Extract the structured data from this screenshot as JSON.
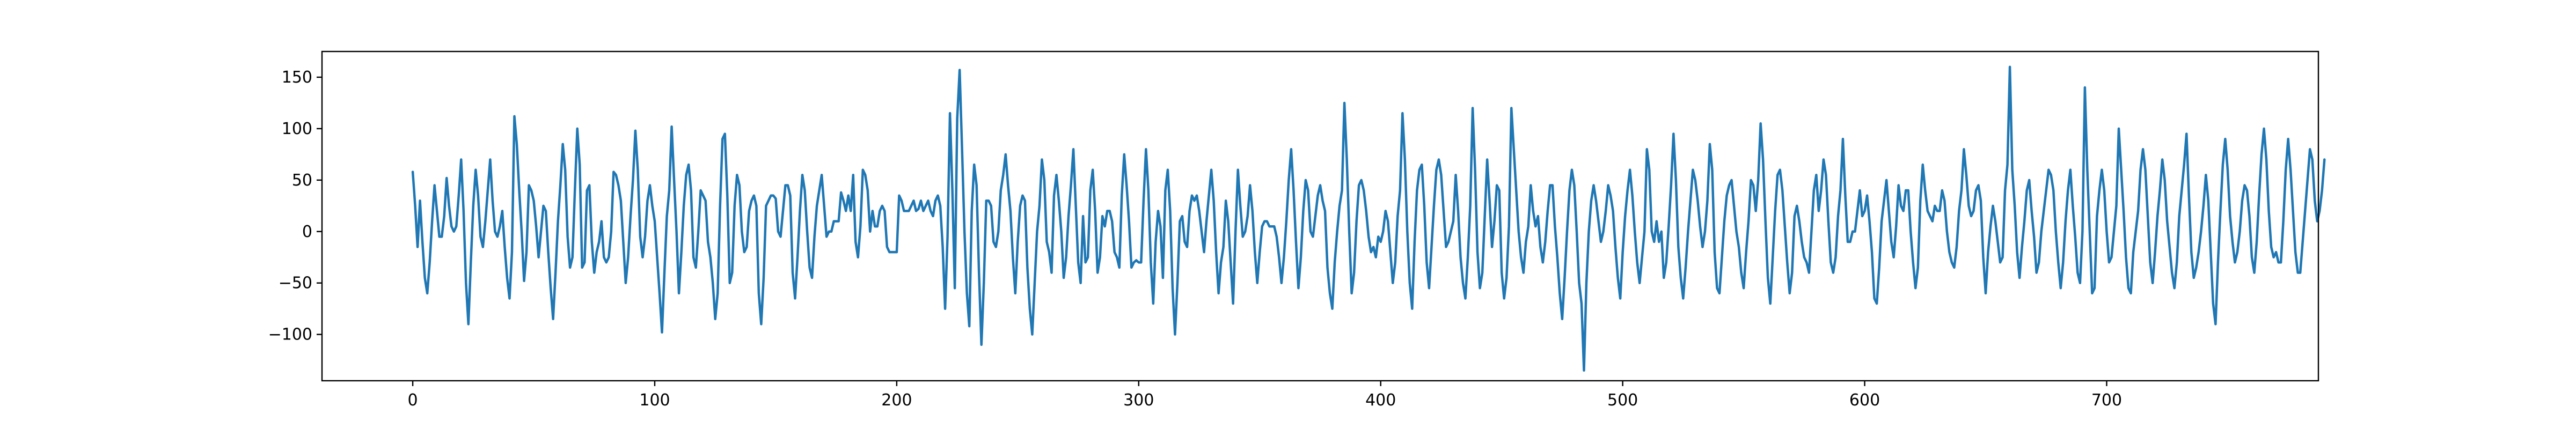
{
  "chart_data": {
    "type": "line",
    "title": "",
    "xlabel": "",
    "ylabel": "",
    "xlim": [
      -37.5,
      787.5
    ],
    "ylim": [
      -145,
      175
    ],
    "grid": false,
    "legend": "none",
    "x_ticks": [
      0,
      100,
      200,
      300,
      400,
      500,
      600,
      700
    ],
    "y_ticks": [
      -100,
      -50,
      0,
      50,
      100,
      150
    ],
    "x_tick_labels": [
      "0",
      "100",
      "200",
      "300",
      "400",
      "500",
      "600",
      "700"
    ],
    "y_tick_labels": [
      "−100",
      "−50",
      "0",
      "50",
      "100",
      "150"
    ],
    "series": [
      {
        "color": "#1f77b4",
        "x_start": 0,
        "x_step": 1,
        "values": [
          58,
          25,
          -15,
          30,
          -10,
          -45,
          -60,
          -30,
          10,
          45,
          20,
          -5,
          -5,
          15,
          52,
          25,
          5,
          0,
          5,
          35,
          70,
          20,
          -50,
          -90,
          -30,
          25,
          60,
          35,
          -5,
          -15,
          10,
          40,
          70,
          30,
          0,
          -5,
          5,
          20,
          -15,
          -45,
          -65,
          -20,
          112,
          85,
          40,
          0,
          -48,
          -20,
          45,
          40,
          30,
          5,
          -25,
          0,
          25,
          20,
          -20,
          -55,
          -85,
          -40,
          10,
          45,
          85,
          60,
          -5,
          -35,
          -25,
          40,
          100,
          65,
          -35,
          -30,
          40,
          45,
          -10,
          -40,
          -20,
          -10,
          10,
          -25,
          -30,
          -25,
          0,
          58,
          55,
          45,
          30,
          -10,
          -50,
          -25,
          15,
          50,
          98,
          60,
          -5,
          -25,
          -5,
          30,
          45,
          25,
          10,
          -25,
          -60,
          -98,
          -40,
          15,
          40,
          102,
          50,
          0,
          -60,
          -20,
          25,
          55,
          65,
          40,
          -25,
          -35,
          0,
          40,
          35,
          30,
          -10,
          -25,
          -50,
          -85,
          -60,
          25,
          90,
          95,
          35,
          -50,
          -40,
          25,
          55,
          45,
          0,
          -20,
          -15,
          20,
          30,
          35,
          25,
          -60,
          -90,
          -45,
          25,
          30,
          35,
          35,
          32,
          0,
          -5,
          20,
          45,
          45,
          35,
          -40,
          -65,
          -25,
          20,
          55,
          40,
          0,
          -35,
          -45,
          -5,
          25,
          40,
          55,
          25,
          -5,
          0,
          0,
          10,
          10,
          10,
          38,
          30,
          20,
          35,
          20,
          55,
          -10,
          -25,
          5,
          60,
          55,
          40,
          0,
          20,
          5,
          5,
          20,
          25,
          20,
          -15,
          -20,
          -20,
          -20,
          -20,
          35,
          30,
          20,
          20,
          20,
          25,
          30,
          20,
          22,
          30,
          20,
          25,
          30,
          20,
          15,
          30,
          35,
          25,
          -15,
          -75,
          -5,
          115,
          40,
          -55,
          110,
          157,
          80,
          0,
          -60,
          -92,
          20,
          65,
          45,
          -40,
          -110,
          -50,
          30,
          30,
          25,
          -10,
          -15,
          0,
          40,
          55,
          75,
          45,
          20,
          -25,
          -60,
          -10,
          25,
          35,
          30,
          -35,
          -75,
          -100,
          -50,
          0,
          25,
          70,
          50,
          -10,
          -20,
          -40,
          35,
          55,
          30,
          0,
          -45,
          -25,
          15,
          45,
          80,
          25,
          -30,
          -50,
          15,
          -30,
          -25,
          40,
          60,
          20,
          -40,
          -25,
          15,
          5,
          20,
          20,
          10,
          -20,
          -25,
          -35,
          35,
          75,
          45,
          10,
          -35,
          -30,
          -28,
          -30,
          -30,
          30,
          80,
          40,
          -30,
          -70,
          -10,
          20,
          5,
          -45,
          40,
          60,
          20,
          -55,
          -100,
          -50,
          10,
          15,
          -10,
          -15,
          20,
          35,
          30,
          35,
          20,
          0,
          -20,
          10,
          35,
          60,
          30,
          -20,
          -60,
          -30,
          -15,
          30,
          10,
          -30,
          -70,
          0,
          60,
          25,
          -5,
          0,
          15,
          45,
          20,
          -20,
          -50,
          -20,
          5,
          10,
          10,
          5,
          5,
          5,
          -5,
          -25,
          -50,
          -25,
          10,
          50,
          80,
          40,
          -10,
          -55,
          -25,
          20,
          50,
          40,
          0,
          -5,
          15,
          35,
          45,
          30,
          20,
          -35,
          -60,
          -75,
          -30,
          0,
          25,
          40,
          125,
          70,
          0,
          -60,
          -40,
          10,
          45,
          50,
          40,
          20,
          -5,
          -20,
          -15,
          -25,
          -5,
          -10,
          0,
          20,
          10,
          -20,
          -50,
          -30,
          15,
          40,
          115,
          70,
          0,
          -50,
          -75,
          -10,
          40,
          60,
          65,
          25,
          -30,
          -55,
          -15,
          25,
          60,
          70,
          55,
          20,
          -15,
          -10,
          0,
          10,
          55,
          20,
          -25,
          -50,
          -65,
          -25,
          25,
          120,
          60,
          -20,
          -55,
          -40,
          15,
          70,
          30,
          -15,
          10,
          45,
          40,
          -40,
          -65,
          -45,
          5,
          120,
          80,
          40,
          0,
          -25,
          -40,
          -10,
          5,
          45,
          20,
          5,
          15,
          -15,
          -30,
          -10,
          20,
          45,
          45,
          5,
          -25,
          -60,
          -85,
          -45,
          0,
          40,
          60,
          45,
          0,
          -50,
          -70,
          -135,
          -50,
          0,
          30,
          45,
          30,
          10,
          -10,
          0,
          20,
          45,
          35,
          20,
          -15,
          -45,
          -65,
          -20,
          15,
          40,
          60,
          35,
          0,
          -30,
          -50,
          -25,
          0,
          80,
          60,
          0,
          -10,
          10,
          -10,
          0,
          -45,
          -30,
          5,
          45,
          95,
          50,
          -15,
          -45,
          -65,
          -35,
          0,
          30,
          60,
          50,
          30,
          5,
          -15,
          0,
          30,
          85,
          60,
          -20,
          -55,
          -60,
          -25,
          10,
          35,
          45,
          50,
          25,
          0,
          -15,
          -40,
          -55,
          -20,
          10,
          50,
          45,
          20,
          50,
          105,
          70,
          10,
          -45,
          -70,
          -25,
          20,
          55,
          60,
          40,
          5,
          -30,
          -60,
          -40,
          15,
          25,
          10,
          -10,
          -25,
          -30,
          -40,
          0,
          40,
          55,
          20,
          40,
          70,
          55,
          10,
          -30,
          -40,
          -25,
          15,
          40,
          90,
          35,
          -10,
          -10,
          0,
          0,
          20,
          40,
          15,
          20,
          35,
          10,
          -20,
          -65,
          -70,
          -35,
          10,
          30,
          50,
          20,
          -10,
          -25,
          5,
          45,
          25,
          20,
          40,
          40,
          0,
          -30,
          -55,
          -35,
          30,
          65,
          40,
          20,
          15,
          10,
          25,
          20,
          20,
          40,
          30,
          0,
          -20,
          -30,
          -35,
          -15,
          20,
          40,
          80,
          55,
          25,
          15,
          20,
          40,
          45,
          30,
          -25,
          -60,
          -20,
          5,
          25,
          10,
          -10,
          -30,
          -25,
          40,
          65,
          160,
          60,
          25,
          -20,
          -45,
          -15,
          10,
          40,
          50,
          20,
          -5,
          -40,
          -30,
          0,
          20,
          40,
          60,
          55,
          40,
          0,
          -30,
          -55,
          -30,
          10,
          40,
          60,
          25,
          -5,
          -40,
          -50,
          0,
          140,
          60,
          0,
          -60,
          -55,
          15,
          40,
          60,
          40,
          0,
          -30,
          -25,
          0,
          25,
          100,
          60,
          20,
          -25,
          -55,
          -60,
          -20,
          0,
          20,
          60,
          80,
          60,
          15,
          -30,
          -50,
          -20,
          15,
          40,
          70,
          50,
          10,
          -15,
          -40,
          -55,
          -30,
          15,
          40,
          65,
          95,
          35,
          -20,
          -45,
          -35,
          -20,
          0,
          25,
          55,
          30,
          -20,
          -70,
          -90,
          -30,
          20,
          65,
          90,
          60,
          15,
          -10,
          -30,
          -20,
          0,
          30,
          45,
          40,
          15,
          -25,
          -40,
          -10,
          35,
          75,
          100,
          70,
          20,
          -15,
          -25,
          -20,
          -30,
          -30,
          10,
          60,
          90,
          60,
          20,
          -20,
          -40,
          -40,
          -10,
          20,
          50,
          80,
          70,
          30,
          10,
          20,
          40,
          70
        ]
      }
    ]
  }
}
